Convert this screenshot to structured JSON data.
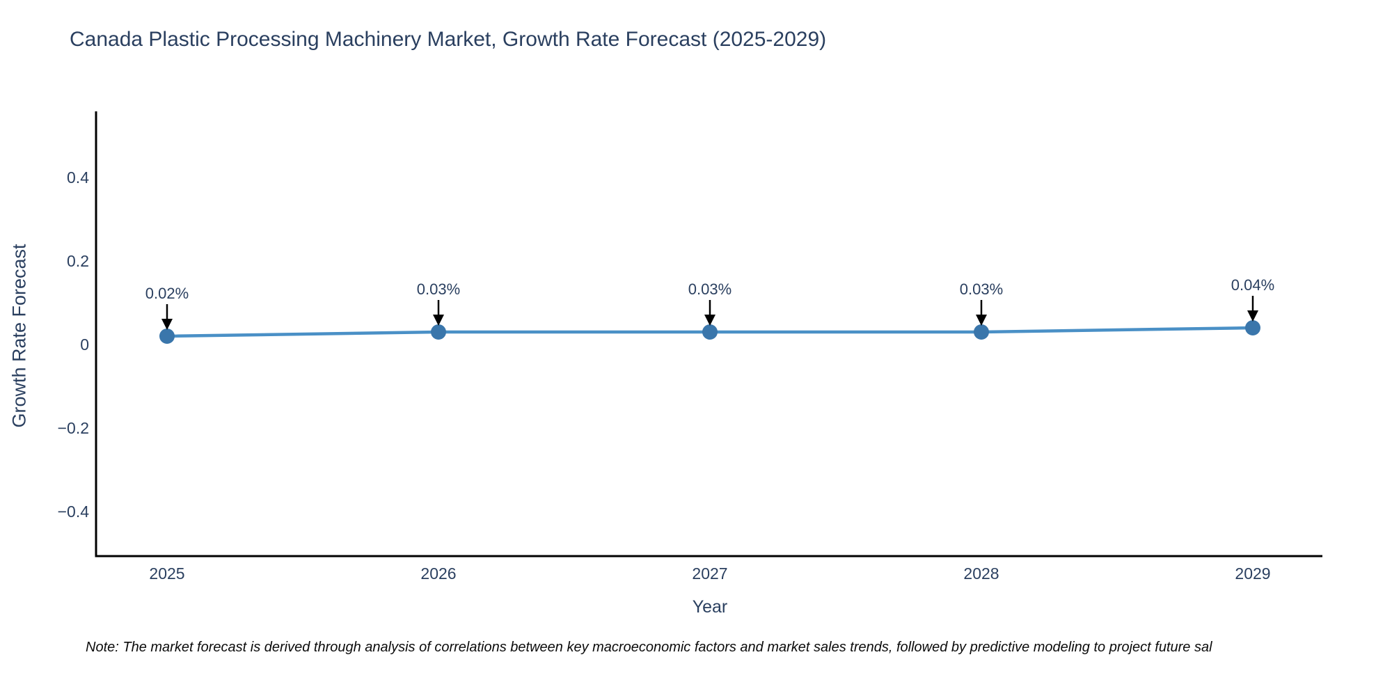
{
  "header": {
    "title": "Canada Plastic Processing Machinery Market, Growth Rate Forecast (2025-2029)"
  },
  "footer": {
    "note": "Note: The market forecast is derived through analysis of correlations between key macroeconomic factors and market sales trends, followed by predictive modeling to project future sal"
  },
  "chart_data": {
    "type": "line",
    "title": "Canada Plastic Processing Machinery Market, Growth Rate Forecast (2025-2029)",
    "xlabel": "Year",
    "ylabel": "Growth Rate Forecast",
    "x": [
      2025,
      2026,
      2027,
      2028,
      2029
    ],
    "series": [
      {
        "name": "Growth Rate Forecast",
        "values": [
          0.02,
          0.03,
          0.03,
          0.03,
          0.04
        ],
        "point_labels": [
          "0.02%",
          "0.03%",
          "0.03%",
          "0.03%",
          "0.04%"
        ]
      }
    ],
    "x_tick_labels": [
      "2025",
      "2026",
      "2027",
      "2028",
      "2029"
    ],
    "y_tick_values": [
      0.4,
      0.2,
      0,
      -0.2,
      -0.4
    ],
    "y_tick_labels": [
      "0.4",
      "0.2",
      "0",
      "−0.2",
      "−0.4"
    ],
    "ylim": [
      -0.5,
      0.56
    ],
    "grid": false,
    "legend": false,
    "annotations_have_arrows": true,
    "colors": {
      "line": "#4a90c6",
      "marker": "#3a76ab",
      "axis": "#000000",
      "arrow": "#000000",
      "text": "#2a3f5f"
    }
  }
}
